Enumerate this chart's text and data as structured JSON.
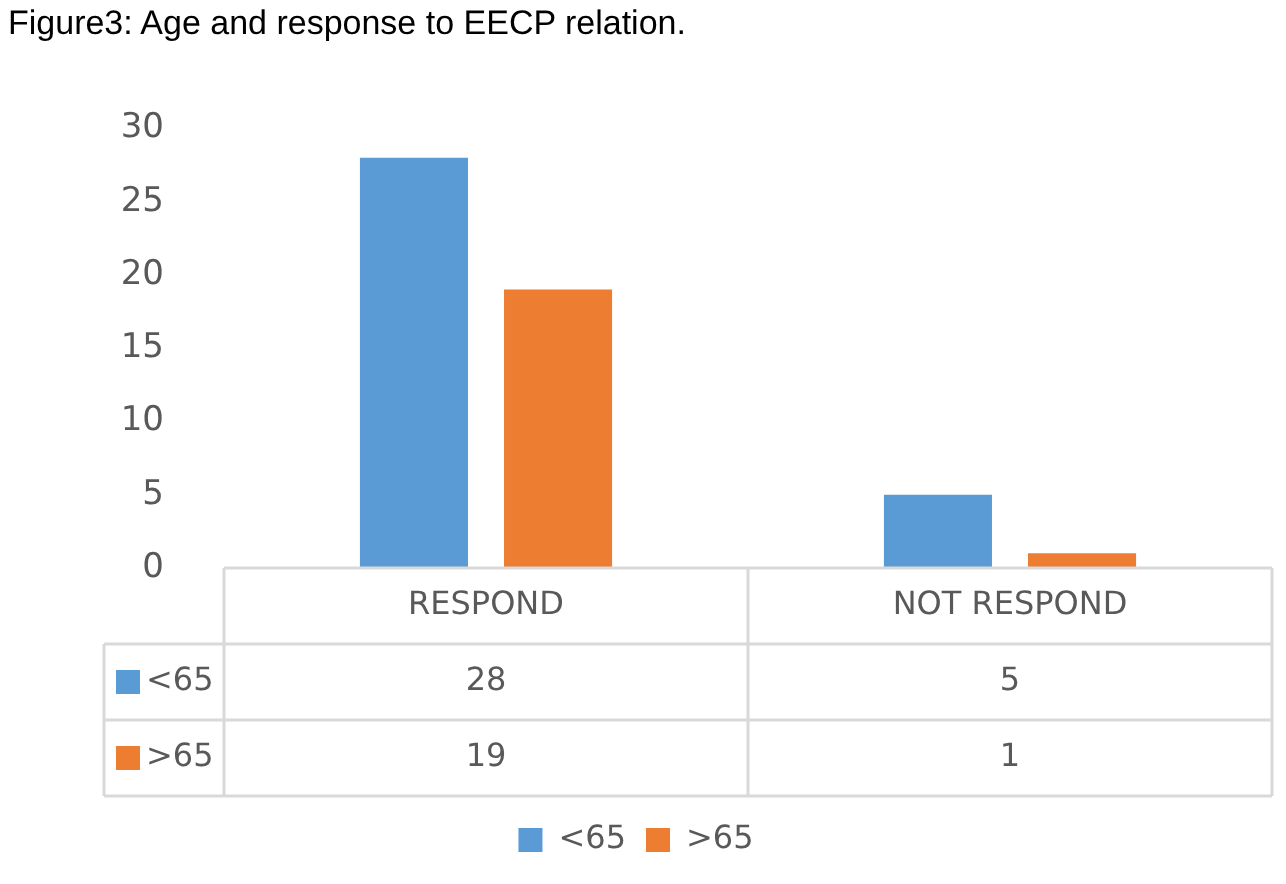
{
  "chart_data": {
    "type": "bar",
    "title": "Figure3: Age and response to EECP relation.",
    "categories": [
      "RESPOND",
      "NOT RESPOND"
    ],
    "series": [
      {
        "name": "<65",
        "color": "#5b9bd5",
        "values": [
          28,
          5
        ]
      },
      {
        "name": ">65",
        "color": "#ed7d31",
        "values": [
          19,
          1
        ]
      }
    ],
    "ylim": [
      0,
      30
    ],
    "yticks": [
      0,
      5,
      10,
      15,
      20,
      25,
      30
    ],
    "grid": false,
    "legend": "bottom",
    "data_labels": true
  }
}
